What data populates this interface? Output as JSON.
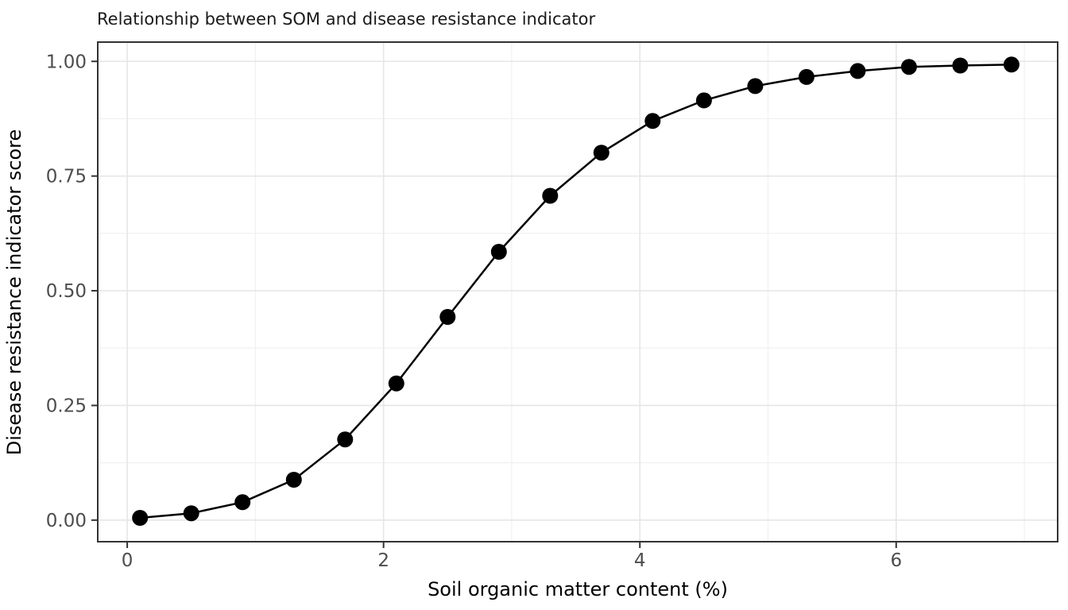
{
  "chart_data": {
    "type": "line",
    "title": "Relationship between SOM and disease resistance indicator",
    "xlabel": "Soil organic matter content (%)",
    "ylabel": "Disease resistance indicator score",
    "x": [
      0.1,
      0.5,
      0.9,
      1.3,
      1.7,
      2.1,
      2.5,
      2.9,
      3.3,
      3.7,
      4.1,
      4.5,
      4.9,
      5.3,
      5.7,
      6.1,
      6.5,
      6.9
    ],
    "y": [
      0.005,
      0.015,
      0.039,
      0.088,
      0.176,
      0.298,
      0.443,
      0.585,
      0.707,
      0.801,
      0.87,
      0.915,
      0.946,
      0.966,
      0.979,
      0.988,
      0.991,
      0.993
    ],
    "xlim": [
      -0.23,
      7.26
    ],
    "ylim": [
      -0.047,
      1.042
    ],
    "x_ticks": [
      0,
      2,
      4,
      6
    ],
    "x_tick_labels": [
      "0",
      "2",
      "4",
      "6"
    ],
    "x_minor_ticks": [
      1,
      3,
      5,
      7
    ],
    "y_ticks": [
      0.0,
      0.25,
      0.5,
      0.75,
      1.0
    ],
    "y_tick_labels": [
      "0.00",
      "0.25",
      "0.50",
      "0.75",
      "1.00"
    ],
    "y_minor_ticks": [
      0.125,
      0.375,
      0.625,
      0.875
    ],
    "grid": true,
    "legend": false,
    "style": {
      "background": "#ffffff",
      "panel_background": "#ffffff",
      "panel_border": "#333333",
      "grid_major": "#e6e6e6",
      "grid_minor": "#f0f0f0",
      "tick_mark": "#333333",
      "tick_label": "#4d4d4d",
      "line_color": "#000000",
      "point_color": "#000000",
      "point_radius": 10,
      "line_width": 2.5
    }
  }
}
